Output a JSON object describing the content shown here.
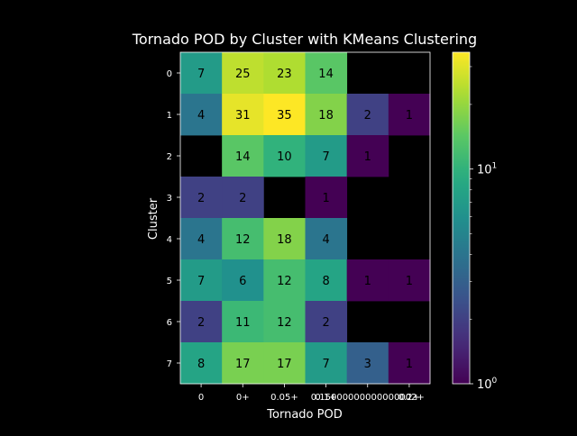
{
  "chart_data": {
    "type": "heatmap",
    "title": "Tornado POD by Cluster with KMeans Clustering",
    "xlabel": "Tornado POD",
    "ylabel": "Cluster",
    "x_tick_labels": [
      "0",
      "0+",
      "0.05+",
      "0.1+",
      "0.15000000000000002+",
      "0.2+"
    ],
    "y_tick_labels": [
      "0",
      "1",
      "2",
      "3",
      "4",
      "5",
      "6",
      "7"
    ],
    "values": [
      [
        7,
        25,
        23,
        14,
        null,
        null
      ],
      [
        4,
        31,
        35,
        18,
        2,
        1
      ],
      [
        null,
        14,
        10,
        7,
        1,
        null
      ],
      [
        2,
        2,
        null,
        1,
        null,
        null
      ],
      [
        4,
        12,
        18,
        4,
        null,
        null
      ],
      [
        7,
        6,
        12,
        8,
        1,
        1
      ],
      [
        2,
        11,
        12,
        2,
        null,
        null
      ],
      [
        8,
        17,
        17,
        7,
        3,
        1
      ]
    ],
    "color_scale": "log",
    "colormap": "viridis",
    "vmin": 1,
    "vmax": 35,
    "colorbar_ticks": [
      {
        "value": 1,
        "label": "10",
        "exp": "0"
      },
      {
        "value": 10,
        "label": "10",
        "exp": "1"
      }
    ],
    "background_color": "#000000",
    "text_color": "#ffffff",
    "annotation_color": "#000000"
  }
}
